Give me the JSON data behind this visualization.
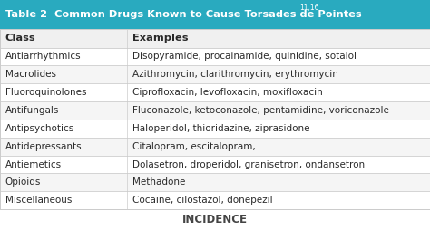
{
  "title": "Table 2  Common Drugs Known to Cause Torsades de Pointes",
  "title_superscript": "11,16",
  "header": [
    "Class",
    "Examples"
  ],
  "rows": [
    [
      "Antiarrhythmics",
      "Disopyramide, procainamide, quinidine, sotalol"
    ],
    [
      "Macrolides",
      "Azithromycin, clarithromycin, erythromycin"
    ],
    [
      "Fluoroquinolones",
      "Ciprofloxacin, levofloxacin, moxifloxacin"
    ],
    [
      "Antifungals",
      "Fluconazole, ketoconazole, pentamidine, voriconazole"
    ],
    [
      "Antipsychotics",
      "Haloperidol, thioridazine, ziprasidone"
    ],
    [
      "Antidepressants",
      "Citalopram, escitalopram,"
    ],
    [
      "Antiemetics",
      "Dolasetron, droperidol, granisetron, ondansetron"
    ],
    [
      "Opioids",
      "Methadone"
    ],
    [
      "Miscellaneous",
      "Cocaine, cilostazol, donepezil"
    ]
  ],
  "title_bg": "#29aabf",
  "title_text_color": "#ffffff",
  "header_bg": "#f0f0f0",
  "row_bg_even": "#ffffff",
  "row_bg_odd": "#f5f5f5",
  "col_split": 0.295,
  "border_color": "#cccccc",
  "text_color": "#2a2a2a",
  "font_size": 7.5,
  "title_font_size": 8.2,
  "header_font_size": 8.2,
  "bottom_label": "INCIDENCE",
  "bottom_label_color": "#444444",
  "fig_width": 4.74,
  "fig_height": 2.54,
  "dpi": 100
}
